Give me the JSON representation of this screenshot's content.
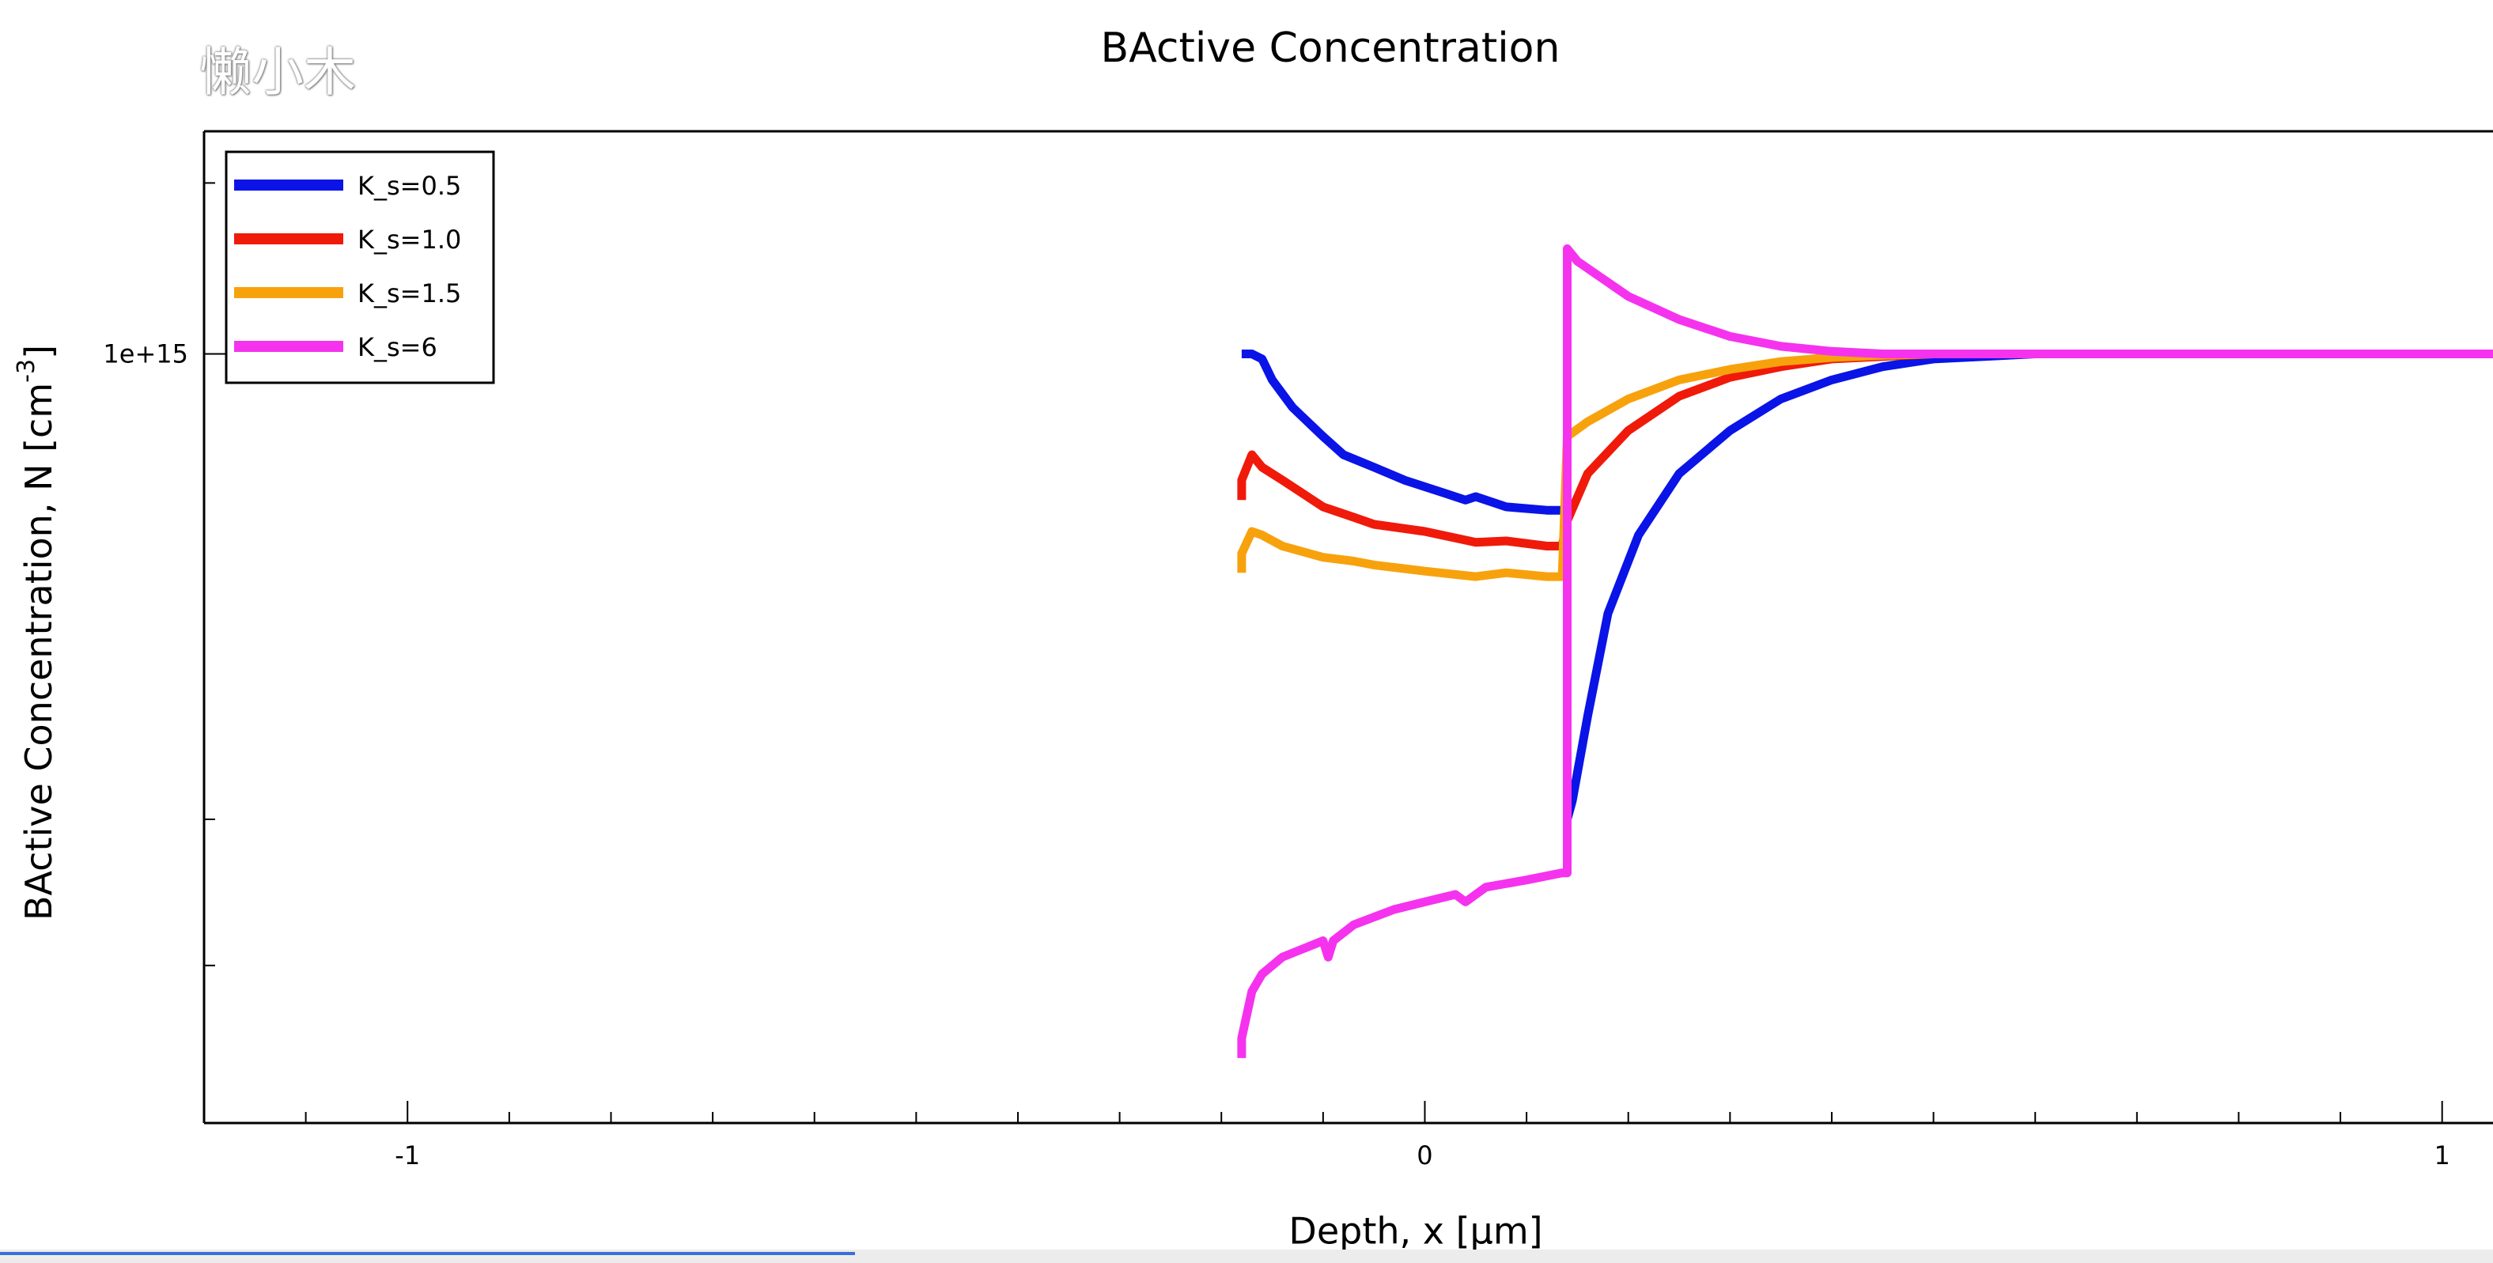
{
  "watermark": "懒小木",
  "colors": {
    "K_s=0.5": "#0a14e6",
    "K_s=1.0": "#f01a0a",
    "K_s=1.5": "#f7a20d",
    "K_s=6": "#f533ee"
  },
  "bottom_progress": {
    "fraction": 0.343
  },
  "chart_data": {
    "type": "line",
    "title": "BActive Concentration",
    "xlabel": "Depth, x [μm]",
    "ylabel_main": "BActive Concentration, N [cm",
    "ylabel_sup": "-3",
    "ylabel_tail": "]",
    "yscale": "log",
    "xlim": [
      -1.2,
      1.05
    ],
    "ylim": [
      220000000000000.0,
      1550000000000000.0
    ],
    "x_ticks": [
      {
        "value": -1,
        "label": "-1"
      },
      {
        "value": 0,
        "label": "0"
      },
      {
        "value": 1,
        "label": "1"
      }
    ],
    "y_ticks": [
      {
        "value": 1000000000000000.0,
        "label": "1e+15"
      }
    ],
    "y_minor_ticks": [
      300000000000000.0,
      400000000000000.0,
      1400000000000000.0
    ],
    "legend_position": "top-left",
    "grid": false,
    "series": [
      {
        "name": "K_s=0.5",
        "x": [
          -0.18,
          -0.17,
          -0.16,
          -0.15,
          -0.13,
          -0.1,
          -0.08,
          -0.05,
          -0.02,
          0.02,
          0.04,
          0.05,
          0.08,
          0.12,
          0.14,
          0.14,
          0.145,
          0.16,
          0.18,
          0.21,
          0.25,
          0.3,
          0.35,
          0.4,
          0.45,
          0.5,
          0.55,
          0.6,
          0.7,
          0.8,
          1.05
        ],
        "y": [
          1000000000000000.0,
          1000000000000000.0,
          990000000000000.0,
          950000000000000.0,
          900000000000000.0,
          850000000000000.0,
          820000000000000.0,
          800000000000000.0,
          780000000000000.0,
          760000000000000.0,
          750000000000000.0,
          755000000000000.0,
          740000000000000.0,
          735000000000000.0,
          735000000000000.0,
          400000000000000.0,
          415000000000000.0,
          490000000000000.0,
          600000000000000.0,
          700000000000000.0,
          790000000000000.0,
          860000000000000.0,
          915000000000000.0,
          950000000000000.0,
          975000000000000.0,
          990000000000000.0,
          995000000000000.0,
          1000000000000000.0,
          1000000000000000.0,
          1000000000000000.0,
          1000000000000000.0
        ]
      },
      {
        "name": "K_s=1.0",
        "x": [
          -0.18,
          -0.18,
          -0.17,
          -0.16,
          -0.14,
          -0.1,
          -0.07,
          -0.05,
          0.0,
          0.05,
          0.08,
          0.12,
          0.135,
          0.14,
          0.16,
          0.2,
          0.25,
          0.3,
          0.35,
          0.4,
          0.45,
          0.5,
          0.55,
          0.6,
          0.7,
          1.05
        ],
        "y": [
          750000000000000.0,
          780000000000000.0,
          820000000000000.0,
          800000000000000.0,
          780000000000000.0,
          740000000000000.0,
          725000000000000.0,
          715000000000000.0,
          705000000000000.0,
          690000000000000.0,
          692000000000000.0,
          685000000000000.0,
          685000000000000.0,
          720000000000000.0,
          790000000000000.0,
          860000000000000.0,
          920000000000000.0,
          955000000000000.0,
          975000000000000.0,
          990000000000000.0,
          995000000000000.0,
          1000000000000000.0,
          1000000000000000.0,
          1000000000000000.0,
          1000000000000000.0,
          1000000000000000.0
        ]
      },
      {
        "name": "K_s=1.5",
        "x": [
          -0.18,
          -0.18,
          -0.17,
          -0.16,
          -0.14,
          -0.1,
          -0.07,
          -0.05,
          0.0,
          0.05,
          0.08,
          0.12,
          0.135,
          0.14,
          0.16,
          0.2,
          0.25,
          0.3,
          0.35,
          0.4,
          0.45,
          0.5,
          0.6,
          0.7,
          1.05
        ],
        "y": [
          650000000000000.0,
          675000000000000.0,
          705000000000000.0,
          700000000000000.0,
          685000000000000.0,
          670000000000000.0,
          665000000000000.0,
          660000000000000.0,
          652000000000000.0,
          645000000000000.0,
          650000000000000.0,
          645000000000000.0,
          645000000000000.0,
          850000000000000.0,
          875000000000000.0,
          915000000000000.0,
          950000000000000.0,
          970000000000000.0,
          985000000000000.0,
          993000000000000.0,
          997000000000000.0,
          1000000000000000.0,
          1000000000000000.0,
          1000000000000000.0,
          1000000000000000.0
        ]
      },
      {
        "name": "K_s=6",
        "x": [
          -0.18,
          -0.18,
          -0.17,
          -0.16,
          -0.14,
          -0.1,
          -0.095,
          -0.09,
          -0.07,
          -0.03,
          0.0,
          0.03,
          0.04,
          0.06,
          0.1,
          0.135,
          0.14,
          0.14,
          0.15,
          0.2,
          0.25,
          0.3,
          0.35,
          0.4,
          0.45,
          0.5,
          0.6,
          0.7,
          1.05
        ],
        "y": [
          250000000000000.0,
          260000000000000.0,
          285000000000000.0,
          295000000000000.0,
          305000000000000.0,
          315000000000000.0,
          305000000000000.0,
          315000000000000.0,
          325000000000000.0,
          335000000000000.0,
          340000000000000.0,
          345000000000000.0,
          340000000000000.0,
          350000000000000.0,
          355000000000000.0,
          360000000000000.0,
          360000000000000.0,
          1230000000000000.0,
          1200000000000000.0,
          1120000000000000.0,
          1070000000000000.0,
          1035000000000000.0,
          1015000000000000.0,
          1005000000000000.0,
          1000000000000000.0,
          1000000000000000.0,
          1000000000000000.0,
          1000000000000000.0,
          1000000000000000.0
        ]
      }
    ]
  }
}
